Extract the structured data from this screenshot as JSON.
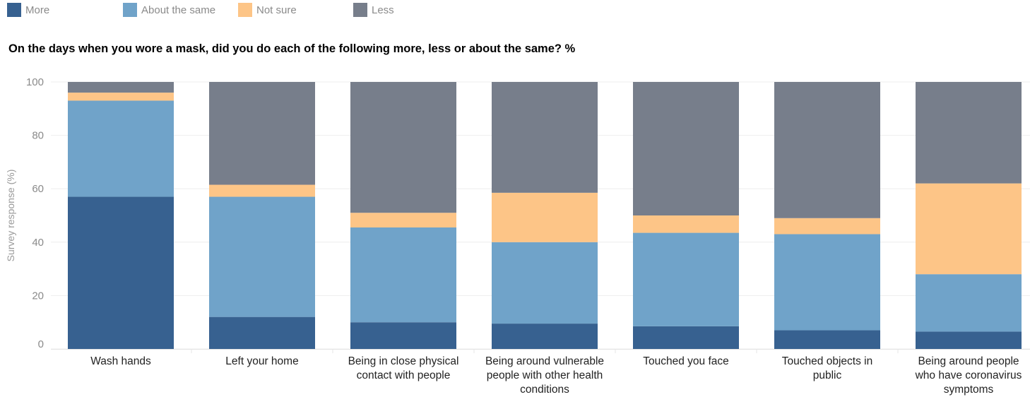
{
  "chart_data": {
    "type": "bar",
    "stacked": true,
    "title": "On the days when you wore a mask, did you do each of the following more, less or about the same? %",
    "ylabel": "Survey response (%)",
    "xlabel": "",
    "ylim": [
      0,
      100
    ],
    "yticks": [
      0,
      20,
      40,
      60,
      80,
      100
    ],
    "grid": true,
    "legend_position": "top-left",
    "categories": [
      "Wash hands",
      "Left your home",
      "Being in close physical contact with people",
      "Being around vulnerable people with other health conditions",
      "Touched you face",
      "Touched objects in public",
      "Being around people who have coronavirus symptoms"
    ],
    "category_lines": [
      [
        "Wash hands"
      ],
      [
        "Left your home"
      ],
      [
        "Being in close physical",
        "contact with people"
      ],
      [
        "Being around vulnerable",
        "people with other health",
        "conditions"
      ],
      [
        "Touched you face"
      ],
      [
        "Touched objects in",
        "public"
      ],
      [
        "Being around people",
        "who have coronavirus",
        "symptoms"
      ]
    ],
    "series": [
      {
        "name": "More",
        "color": "#376190",
        "values": [
          57,
          12,
          10,
          9.5,
          8.5,
          7,
          6.5
        ]
      },
      {
        "name": "About the same",
        "color": "#70a3c9",
        "values": [
          36,
          45,
          35.5,
          30.5,
          35,
          36,
          21.5
        ]
      },
      {
        "name": "Not sure",
        "color": "#fdc587",
        "values": [
          3,
          4.5,
          5.5,
          18.5,
          6.5,
          6,
          34
        ]
      },
      {
        "name": "Less",
        "color": "#777e8b",
        "values": [
          4,
          38.5,
          49,
          41.5,
          50,
          51,
          38
        ]
      }
    ]
  }
}
